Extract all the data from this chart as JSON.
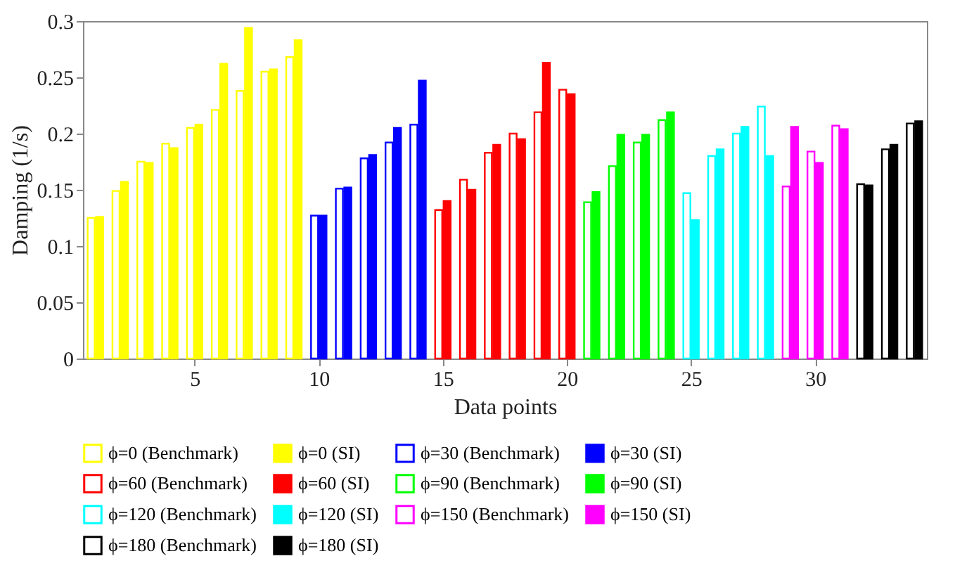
{
  "chart_data": {
    "type": "bar",
    "xlabel": "Data points",
    "ylabel": "Damping (1/s)",
    "xlim": [
      0.5,
      34.5
    ],
    "xticks": [
      5,
      10,
      15,
      20,
      25,
      30
    ],
    "ylim": [
      0,
      0.3
    ],
    "yticks": [
      0,
      0.05,
      0.1,
      0.15,
      0.2,
      0.25,
      0.3
    ],
    "grid": false,
    "legend": "bottom",
    "series": [
      {
        "name": "ϕ=0 (Benchmark)",
        "color": "#ffff00",
        "x": [
          1,
          2,
          3,
          4,
          5,
          6,
          7,
          8,
          9
        ],
        "values": [
          0.125,
          0.149,
          0.175,
          0.191,
          0.205,
          0.221,
          0.238,
          0.255,
          0.268
        ]
      },
      {
        "name": "ϕ=0 (SI)",
        "color": "#ffff00",
        "x": [
          1,
          2,
          3,
          4,
          5,
          6,
          7,
          8,
          9
        ],
        "values": [
          0.126,
          0.157,
          0.174,
          0.187,
          0.208,
          0.262,
          0.294,
          0.257,
          0.283
        ]
      },
      {
        "name": "ϕ=30 (Benchmark)",
        "color": "#0000ff",
        "x": [
          10,
          11,
          12,
          13,
          14
        ],
        "values": [
          0.127,
          0.151,
          0.178,
          0.192,
          0.208
        ]
      },
      {
        "name": "ϕ=30 (SI)",
        "color": "#0000ff",
        "x": [
          10,
          11,
          12,
          13,
          14
        ],
        "values": [
          0.127,
          0.152,
          0.181,
          0.205,
          0.247
        ]
      },
      {
        "name": "ϕ=60 (Benchmark)",
        "color": "#ff0000",
        "x": [
          15,
          16,
          17,
          18,
          19,
          20
        ],
        "values": [
          0.132,
          0.159,
          0.183,
          0.2,
          0.219,
          0.239
        ]
      },
      {
        "name": "ϕ=60 (SI)",
        "color": "#ff0000",
        "x": [
          15,
          16,
          17,
          18,
          19,
          20
        ],
        "values": [
          0.14,
          0.15,
          0.19,
          0.195,
          0.263,
          0.235
        ]
      },
      {
        "name": "ϕ=90 (Benchmark)",
        "color": "#00ff00",
        "x": [
          21,
          22,
          23,
          24
        ],
        "values": [
          0.139,
          0.171,
          0.192,
          0.212
        ]
      },
      {
        "name": "ϕ=90 (SI)",
        "color": "#00ff00",
        "x": [
          21,
          22,
          23,
          24
        ],
        "values": [
          0.148,
          0.199,
          0.199,
          0.219
        ]
      },
      {
        "name": "ϕ=120 (Benchmark)",
        "color": "#00ffff",
        "x": [
          25,
          26,
          27,
          28
        ],
        "values": [
          0.147,
          0.18,
          0.2,
          0.224
        ]
      },
      {
        "name": "ϕ=120 (SI)",
        "color": "#00ffff",
        "x": [
          25,
          26,
          27,
          28
        ],
        "values": [
          0.123,
          0.186,
          0.206,
          0.18
        ]
      },
      {
        "name": "ϕ=150 (Benchmark)",
        "color": "#ff00ff",
        "x": [
          29,
          30,
          31
        ],
        "values": [
          0.153,
          0.184,
          0.207
        ]
      },
      {
        "name": "ϕ=150 (SI)",
        "color": "#ff00ff",
        "x": [
          29,
          30,
          31
        ],
        "values": [
          0.206,
          0.174,
          0.204
        ]
      },
      {
        "name": "ϕ=180 (Benchmark)",
        "color": "#000000",
        "x": [
          32,
          33,
          34
        ],
        "values": [
          0.155,
          0.186,
          0.209
        ]
      },
      {
        "name": "ϕ=180 (SI)",
        "color": "#000000",
        "x": [
          32,
          33,
          34
        ],
        "values": [
          0.154,
          0.19,
          0.211
        ]
      }
    ]
  }
}
